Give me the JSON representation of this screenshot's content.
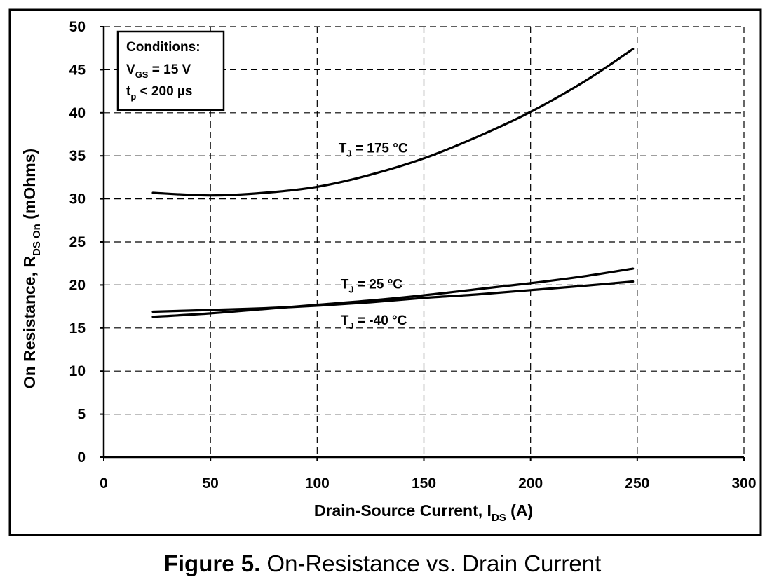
{
  "chart_data": {
    "type": "line",
    "xlabel": {
      "main": "Drain-Source Current, I",
      "sub": "DS",
      "tail": " (A)"
    },
    "ylabel": {
      "main": "On Resistance, R",
      "sub": "DS On",
      "tail": " (mOhms)"
    },
    "xlim": [
      0,
      300
    ],
    "ylim": [
      0,
      50
    ],
    "x_ticks": [
      0,
      50,
      100,
      150,
      200,
      250,
      300
    ],
    "y_ticks": [
      0,
      5,
      10,
      15,
      20,
      25,
      30,
      35,
      40,
      45,
      50
    ],
    "grid": true,
    "conditions": {
      "title": "Conditions:",
      "line1": {
        "main": "V",
        "sub": "GS",
        "tail": " = 15 V"
      },
      "line2": {
        "main": "t",
        "sub": "p",
        "tail": " < 200 µs"
      }
    },
    "series": [
      {
        "name": "T_J = 175 °C",
        "label": {
          "main": "T",
          "sub": "J",
          "tail": " = 175 °C"
        },
        "x": [
          23,
          50,
          75,
          100,
          125,
          150,
          175,
          200,
          225,
          248
        ],
        "y": [
          30.7,
          30.4,
          30.7,
          31.4,
          32.8,
          34.7,
          37.2,
          40.1,
          43.6,
          47.4
        ]
      },
      {
        "name": "T_J = 25 °C",
        "label": {
          "main": "T",
          "sub": "J",
          "tail": " = 25 °C"
        },
        "x": [
          23,
          50,
          75,
          100,
          125,
          150,
          175,
          200,
          225,
          248
        ],
        "y": [
          16.3,
          16.7,
          17.2,
          17.7,
          18.2,
          18.8,
          19.5,
          20.2,
          21.0,
          21.9
        ]
      },
      {
        "name": "T_J = -40 °C",
        "label": {
          "main": "T",
          "sub": "J",
          "tail": " = -40 °C"
        },
        "x": [
          23,
          50,
          75,
          100,
          125,
          150,
          175,
          200,
          225,
          248
        ],
        "y": [
          16.9,
          17.1,
          17.3,
          17.6,
          18.0,
          18.5,
          18.9,
          19.4,
          19.9,
          20.4
        ]
      }
    ]
  },
  "caption": {
    "bold": "Figure 5.",
    "text": " On-Resistance vs. Drain Current"
  }
}
